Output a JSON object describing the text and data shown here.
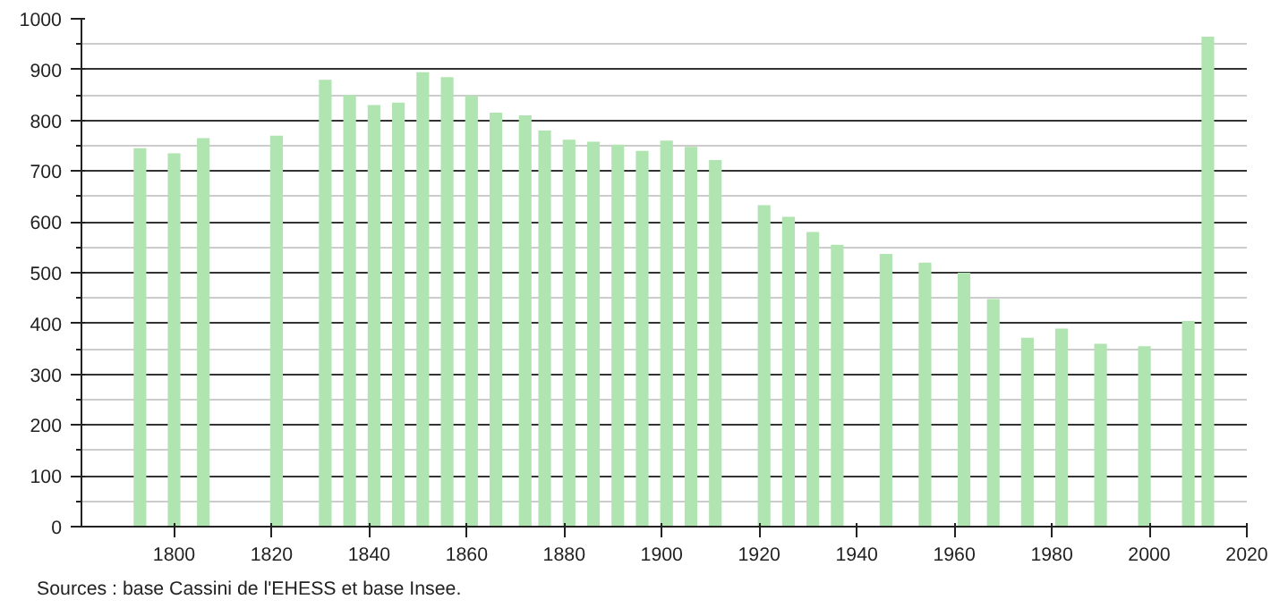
{
  "chart_data": {
    "type": "bar",
    "color": "#b0e4b0",
    "x": [
      1793,
      1800,
      1806,
      1821,
      1831,
      1836,
      1841,
      1846,
      1851,
      1856,
      1861,
      1866,
      1872,
      1876,
      1881,
      1886,
      1891,
      1896,
      1901,
      1906,
      1911,
      1921,
      1926,
      1931,
      1936,
      1946,
      1954,
      1962,
      1968,
      1975,
      1982,
      1990,
      1999,
      2008,
      2012
    ],
    "values": [
      745,
      735,
      765,
      770,
      880,
      850,
      830,
      835,
      895,
      885,
      848,
      815,
      810,
      780,
      762,
      758,
      752,
      740,
      760,
      748,
      722,
      633,
      610,
      580,
      555,
      537,
      520,
      500,
      448,
      372,
      390,
      360,
      355,
      405,
      965
    ],
    "xlim": [
      1781,
      2020
    ],
    "xticks": [
      1800,
      1820,
      1840,
      1860,
      1880,
      1900,
      1920,
      1940,
      1960,
      1980,
      2000,
      2020
    ],
    "ylim": [
      0,
      1000
    ],
    "yticks": [
      0,
      100,
      200,
      300,
      400,
      500,
      600,
      700,
      800,
      900,
      1000
    ],
    "grid": "y",
    "annotations": [
      "Sources : base Cassini de l'EHESS et base Insee."
    ]
  }
}
